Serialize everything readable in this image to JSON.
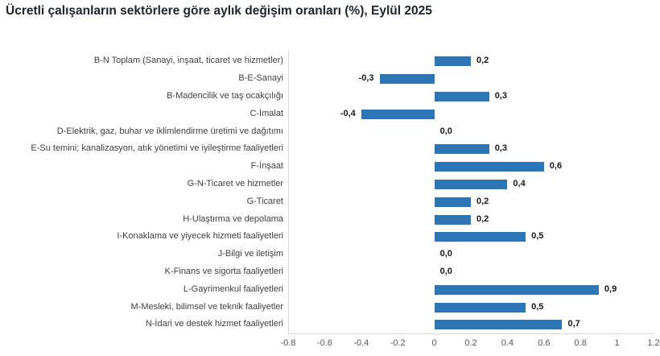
{
  "chart_data": {
    "type": "bar",
    "orientation": "horizontal",
    "title": "Ücretli çalışanların sektörlere göre aylık değişim oranları (%), Eylül 2025",
    "categories": [
      "B-N Toplam (Sanayi, inşaat, ticaret ve hizmetler)",
      "B-E-Sanayi",
      "B-Madencilik ve taş ocakçılığı",
      "C-İmalat",
      "D-Elektrik, gaz, buhar ve iklimlendirme üretimi ve dağıtımı",
      "E-Su temini; kanalizasyon, atık yönetimi ve iyileştirme faaliyetleri",
      "F-İnşaat",
      "G-N-Ticaret ve hizmetler",
      "G-Ticaret",
      "H-Ulaştırma ve depolama",
      "I-Konaklama ve yiyecek hizmeti faaliyetleri",
      "J-Bilgi ve iletişim",
      "K-Finans ve sigorta faaliyetleri",
      "L-Gayrimenkul faaliyetleri",
      "M-Mesleki, bilimsel ve teknik faaliyetler",
      "N-İdari ve destek hizmet faaliyetleri"
    ],
    "values": [
      0.2,
      -0.3,
      0.3,
      -0.4,
      0.0,
      0.3,
      0.6,
      0.4,
      0.2,
      0.2,
      0.5,
      0.0,
      0.0,
      0.9,
      0.5,
      0.7
    ],
    "value_labels": [
      "0,2",
      "-0,3",
      "0,3",
      "-0,4",
      "0,0",
      "0,3",
      "0,6",
      "0,4",
      "0,2",
      "0,2",
      "0,5",
      "0,0",
      "0,0",
      "0,9",
      "0,5",
      "0,7"
    ],
    "xlabel": "",
    "ylabel": "",
    "xlim": [
      -0.8,
      1.2
    ],
    "x_tick_values": [
      -0.8,
      -0.6,
      -0.4,
      -0.2,
      0,
      0.2,
      0.4,
      0.6,
      0.8,
      1,
      1.2
    ],
    "x_tick_labels": [
      "-0.8",
      "-0.6",
      "-0.4",
      "-0.2",
      "0",
      "0.2",
      "0.4",
      "0.6",
      "0.8",
      "1",
      "1.2"
    ],
    "grid": false,
    "legend": "none",
    "bar_color": "#2E75B6",
    "axis_line_color": "#d9d9d9"
  }
}
